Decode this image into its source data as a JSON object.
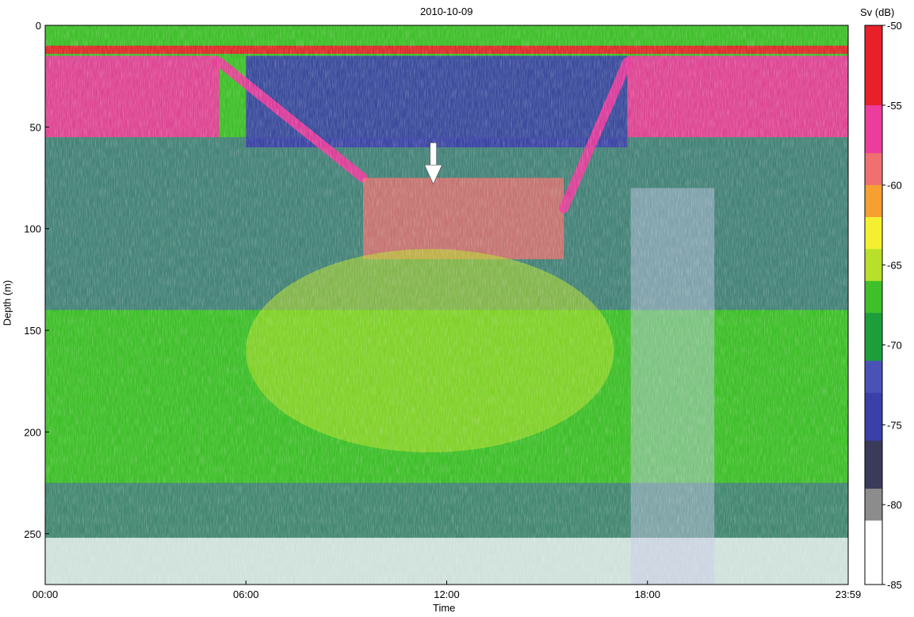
{
  "chart_data": {
    "type": "heatmap",
    "title": "2010-10-09",
    "xlabel": "Time",
    "ylabel": "Depth (m)",
    "x_ticks": [
      "00:00",
      "06:00",
      "12:00",
      "18:00",
      "23:59"
    ],
    "x_range_hours": [
      0,
      24
    ],
    "y_ticks": [
      0,
      50,
      100,
      150,
      200,
      250
    ],
    "ylim": [
      0,
      275
    ],
    "y_inverted": true,
    "colorbar": {
      "label": "Sv (dB)",
      "range": [
        -85,
        -50
      ],
      "ticks": [
        -50,
        -55,
        -60,
        -65,
        -70,
        -75,
        -80,
        -85
      ],
      "colormap": [
        {
          "value": -85,
          "color": "#ffffff"
        },
        {
          "value": -81,
          "color": "#8c8c8c"
        },
        {
          "value": -79,
          "color": "#3a3a5a"
        },
        {
          "value": -76,
          "color": "#3b3fa8"
        },
        {
          "value": -73,
          "color": "#4a52b8"
        },
        {
          "value": -71,
          "color": "#1e9e3a"
        },
        {
          "value": -68,
          "color": "#3fbf2a"
        },
        {
          "value": -66,
          "color": "#b8e02a"
        },
        {
          "value": -64,
          "color": "#f4ef30"
        },
        {
          "value": -62,
          "color": "#f5a030"
        },
        {
          "value": -60,
          "color": "#f07070"
        },
        {
          "value": -58,
          "color": "#ec3c9c"
        },
        {
          "value": -55,
          "color": "#e8202a"
        },
        {
          "value": -50,
          "color": "#8a1010"
        }
      ]
    },
    "features": [
      {
        "name": "surface band",
        "depth_m": [
          10,
          14
        ],
        "time_h": [
          0,
          24
        ],
        "sv_db": -52
      },
      {
        "name": "night scattering layer",
        "depth_m": [
          15,
          55
        ],
        "time_h": [
          0,
          5.2
        ],
        "sv_db": -57
      },
      {
        "name": "night scattering layer",
        "depth_m": [
          15,
          55
        ],
        "time_h": [
          17.4,
          24
        ],
        "sv_db": -57
      },
      {
        "name": "descending layer",
        "time_h": [
          5.2,
          9.5
        ],
        "depth_m": [
          18,
          75
        ],
        "sv_db": -58
      },
      {
        "name": "daytime layer",
        "time_h": [
          9.5,
          15.5
        ],
        "depth_m": [
          75,
          115
        ],
        "sv_db": -60
      },
      {
        "name": "ascending layer",
        "time_h": [
          15.5,
          17.4
        ],
        "depth_m": [
          90,
          18
        ],
        "sv_db": -58
      },
      {
        "name": "deep daytime scattering",
        "time_h": [
          6,
          17
        ],
        "depth_m": [
          110,
          210
        ],
        "sv_db": -66
      }
    ],
    "annotations": [
      {
        "type": "arrow",
        "time_h": 11.6,
        "depth_m": 78,
        "direction": "down",
        "color": "#ffffff"
      }
    ]
  }
}
